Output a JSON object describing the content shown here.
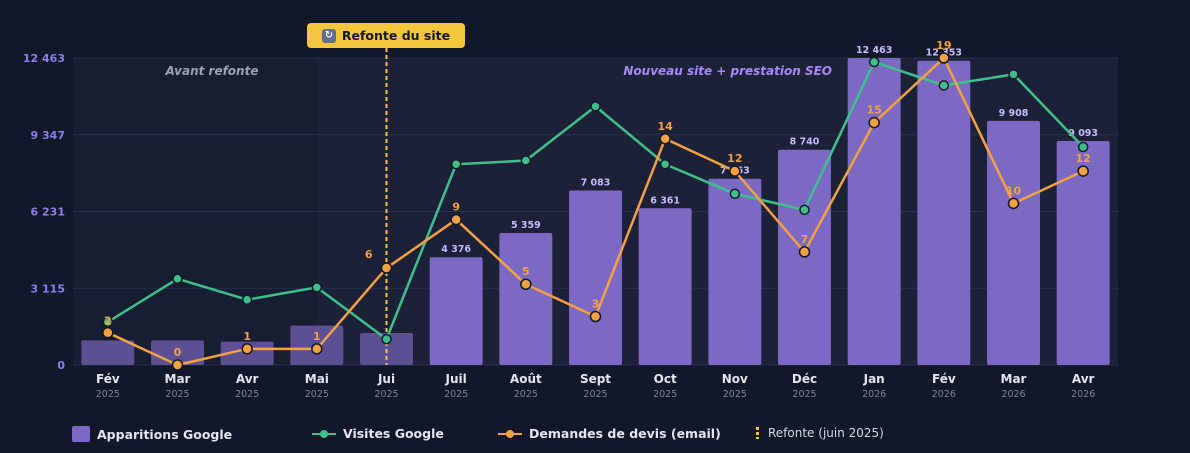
{
  "colors": {
    "background": "#121829",
    "plot_before": "#171e31",
    "plot_after": "#1c2138",
    "bars": "#7b69c3",
    "bars_before": "#5d4f94",
    "visits_line": "#3fc08a",
    "quotes_line": "#f4a142",
    "redesign_marker": "#f5c53b",
    "axis_text": "#8d7ff0",
    "month_text": "#e3e6ee",
    "year_text": "#7d839a"
  },
  "badge": {
    "icon": "refresh-icon",
    "label": "Refonte du site"
  },
  "chart_data": {
    "type": "bar",
    "categories": [
      "Fév",
      "Mar",
      "Avr",
      "Mai",
      "Jui",
      "Juil",
      "Août",
      "Sept",
      "Oct",
      "Nov",
      "Déc",
      "Jan",
      "Fév",
      "Mar",
      "Avr"
    ],
    "years": [
      "2025",
      "2025",
      "2025",
      "2025",
      "2025",
      "2025",
      "2025",
      "2025",
      "2025",
      "2025",
      "2025",
      "2026",
      "2026",
      "2026",
      "2026"
    ],
    "y_ticks": [
      "12 463",
      "9 347",
      "6 231",
      "3 115",
      "0"
    ],
    "ylim": [
      0,
      12463
    ],
    "series": [
      {
        "name": "Apparitions Google",
        "type": "bar",
        "values": [
          1000,
          1000,
          950,
          1600,
          1300,
          4376,
          5359,
          7083,
          6361,
          7563,
          8740,
          12463,
          12353,
          9908,
          9093
        ],
        "labels": [
          "",
          "",
          "",
          "",
          "",
          "4 376",
          "5 359",
          "7 083",
          "6 361",
          "7 563",
          "8 740",
          "12 463",
          "12 353",
          "9 908",
          "9 093"
        ]
      },
      {
        "name": "Visites Google",
        "type": "line",
        "values": [
          1750,
          3500,
          2650,
          3150,
          1050,
          8150,
          8300,
          10500,
          8150,
          6950,
          6300,
          12300,
          11350,
          11800,
          8850
        ]
      },
      {
        "name": "Demandes de devis (email)",
        "type": "line",
        "values": [
          2,
          0,
          1,
          1,
          6,
          9,
          5,
          3,
          14,
          12,
          7,
          15,
          19,
          10,
          12
        ],
        "ymax": 19
      }
    ],
    "annotations": {
      "redesign_index": 4,
      "before_label": "Avant refonte",
      "after_label": "Nouveau site + prestation SEO"
    },
    "legend": [
      {
        "label": "Apparitions Google"
      },
      {
        "label": "Visites Google"
      },
      {
        "label": "Demandes de devis (email)"
      },
      {
        "label": "Refonte (juin 2025)"
      }
    ],
    "legend_position": "bottom",
    "grid": true
  }
}
